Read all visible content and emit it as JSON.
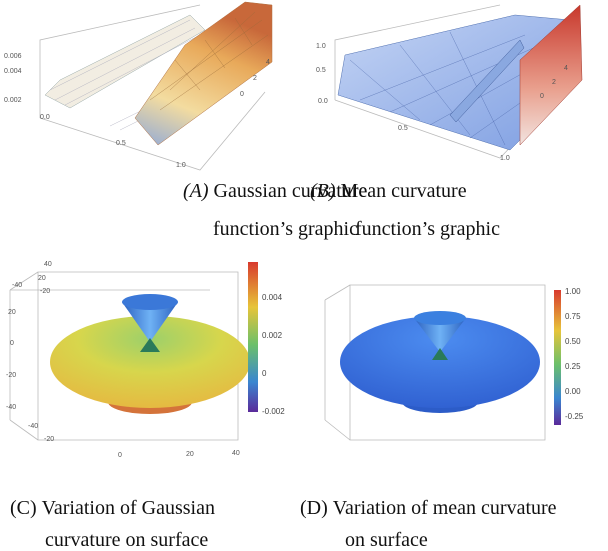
{
  "panels": [
    {
      "label": "(A)",
      "caption": [
        "Gaussian curvature",
        "function’s graphic"
      ],
      "ticks": [
        "0.006",
        "0.004",
        "0.002",
        "0.0",
        "0.5",
        "1.0",
        "0",
        "2",
        "4"
      ]
    },
    {
      "label": "(B)",
      "caption": [
        "Mean curvature",
        "function’s graphic"
      ],
      "ticks": [
        "1.0",
        "0.5",
        "0.0",
        "0.5",
        "1.0",
        "0",
        "2",
        "4"
      ]
    },
    {
      "label": "(C)",
      "caption": [
        "Variation of Gaussian",
        "curvature on surface"
      ],
      "ticks": [
        "40",
        "20",
        "-20",
        "-40",
        "20",
        "0",
        "-20",
        "-40",
        "-40",
        "-20",
        "0",
        "20",
        "40"
      ],
      "colorbar": [
        "0.004",
        "0.002",
        "0",
        "-0.002"
      ]
    },
    {
      "label": "(D)",
      "caption": [
        "Variation of mean curvature",
        "on surface"
      ],
      "colorbar": [
        "1.00",
        "0.75",
        "0.50",
        "0.25",
        "0.00",
        "-0.25"
      ]
    }
  ]
}
